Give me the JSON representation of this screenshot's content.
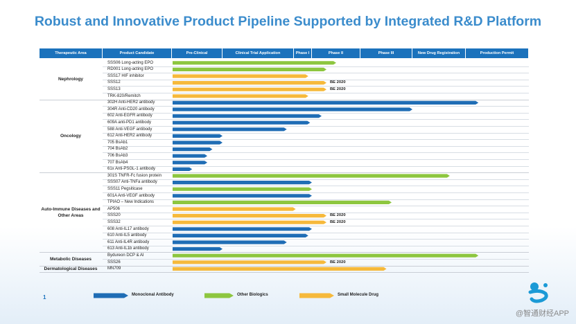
{
  "title": "Robust and Innovative Product Pipeline Supported by Integrated R&D Platform",
  "page_number": "1",
  "watermark": "@智通财经APP",
  "colors": {
    "monoclonal": "#1f6db5",
    "other_biologics": "#8dc63f",
    "small_molecule": "#f6b93b",
    "header": "#1b72bc"
  },
  "chart_data": {
    "type": "bar",
    "title": "Robust and Innovative Product Pipeline Supported by Integrated R&D Platform",
    "columns": [
      "Therapeutic Area",
      "Product Candidate",
      "Pre-Clinical",
      "Clinical Trial Application",
      "Phase I",
      "Phase II",
      "Phase III",
      "New Drug Registration",
      "Production Permit"
    ],
    "stages": [
      "Pre-Clinical",
      "Clinical Trial Application",
      "Phase I",
      "Phase II",
      "Phase III",
      "New Drug Registration",
      "Production Permit"
    ],
    "legend": [
      {
        "label": "Monoclonal Antibody",
        "type": "mab"
      },
      {
        "label": "Other Biologics",
        "type": "bio"
      },
      {
        "label": "Small Molecule Drug",
        "type": "sm"
      }
    ],
    "groups": [
      {
        "name": "Nephrology",
        "rows": [
          {
            "label": "SSS06 Long-acting EPO",
            "type": "bio",
            "progress": 3.5,
            "note": ""
          },
          {
            "label": "RD001 Long-acting EPO",
            "type": "bio",
            "progress": 3.3,
            "note": ""
          },
          {
            "label": "SSS17 HIF inhibitor",
            "type": "sm",
            "progress": 2.8,
            "note": ""
          },
          {
            "label": "SSS12",
            "type": "sm",
            "progress": 3.3,
            "note": "BE 2020"
          },
          {
            "label": "SSS13",
            "type": "sm",
            "progress": 3.3,
            "note": "BE 2020"
          },
          {
            "label": "TRK-820/Remitch",
            "type": "sm",
            "progress": 2.8,
            "note": ""
          }
        ]
      },
      {
        "name": "Oncology",
        "rows": [
          {
            "label": "302H Anti-HER2 antibody",
            "type": "mab",
            "progress": 6.2,
            "note": ""
          },
          {
            "label": "304R Anti-CD20 antibody",
            "type": "mab",
            "progress": 5.0,
            "note": ""
          },
          {
            "label": "602 Anti-EGFR antibody",
            "type": "mab",
            "progress": 3.2,
            "note": ""
          },
          {
            "label": "609A anti-PD1 antibody",
            "type": "mab",
            "progress": 2.9,
            "note": ""
          },
          {
            "label": "588 Anti-VEGF antibody",
            "type": "mab",
            "progress": 1.9,
            "note": ""
          },
          {
            "label": "612 Anti-HER2 antibody",
            "type": "mab",
            "progress": 1.0,
            "note": ""
          },
          {
            "label": "705 BsAb1",
            "type": "mab",
            "progress": 1.0,
            "note": ""
          },
          {
            "label": "704 BsAb2",
            "type": "mab",
            "progress": 0.8,
            "note": ""
          },
          {
            "label": "706 BsAb3",
            "type": "mab",
            "progress": 0.7,
            "note": ""
          },
          {
            "label": "707 BsAb4",
            "type": "mab",
            "progress": 0.7,
            "note": ""
          },
          {
            "label": "61x Anti-PSGL-1 antibody",
            "type": "mab",
            "progress": 0.4,
            "note": ""
          }
        ]
      },
      {
        "name": "Auto-Immune Diseases and Other Areas",
        "rows": [
          {
            "label": "301S TNFR-Fc fusion protein",
            "type": "bio",
            "progress": 5.7,
            "note": ""
          },
          {
            "label": "SSS07 Anti-TNFa antibody",
            "type": "mab",
            "progress": 3.0,
            "note": ""
          },
          {
            "label": "SSS11 Pegsiticase",
            "type": "bio",
            "progress": 3.0,
            "note": ""
          },
          {
            "label": "601A Anti-VEGF antibody",
            "type": "mab",
            "progress": 3.0,
            "note": ""
          },
          {
            "label": "TPIAO – New Indications",
            "type": "bio",
            "progress": 4.6,
            "note": ""
          },
          {
            "label": "AP506",
            "type": "sm",
            "progress": 2.1,
            "note": ""
          },
          {
            "label": "SSS20",
            "type": "sm",
            "progress": 3.3,
            "note": "BE 2020"
          },
          {
            "label": "SSS32",
            "type": "sm",
            "progress": 3.3,
            "note": "BE 2020"
          },
          {
            "label": "608 Anti-IL17 antibody",
            "type": "mab",
            "progress": 3.0,
            "note": ""
          },
          {
            "label": "610 Anti-IL5 antibody",
            "type": "mab",
            "progress": 2.8,
            "note": ""
          },
          {
            "label": "611 Anti-IL4R antibody",
            "type": "mab",
            "progress": 1.9,
            "note": ""
          },
          {
            "label": "613 Anti-IL1b antibody",
            "type": "mab",
            "progress": 1.0,
            "note": ""
          }
        ]
      },
      {
        "name": "Metabolic Diseases",
        "rows": [
          {
            "label": "Bydureon DCP & AI",
            "type": "bio",
            "progress": 6.2,
            "note": ""
          },
          {
            "label": "SSS26",
            "type": "sm",
            "progress": 3.3,
            "note": "BE 2020"
          }
        ]
      },
      {
        "name": "Dermatological Diseases",
        "rows": [
          {
            "label": "MN709",
            "type": "sm",
            "progress": 4.5,
            "note": ""
          }
        ]
      }
    ]
  }
}
